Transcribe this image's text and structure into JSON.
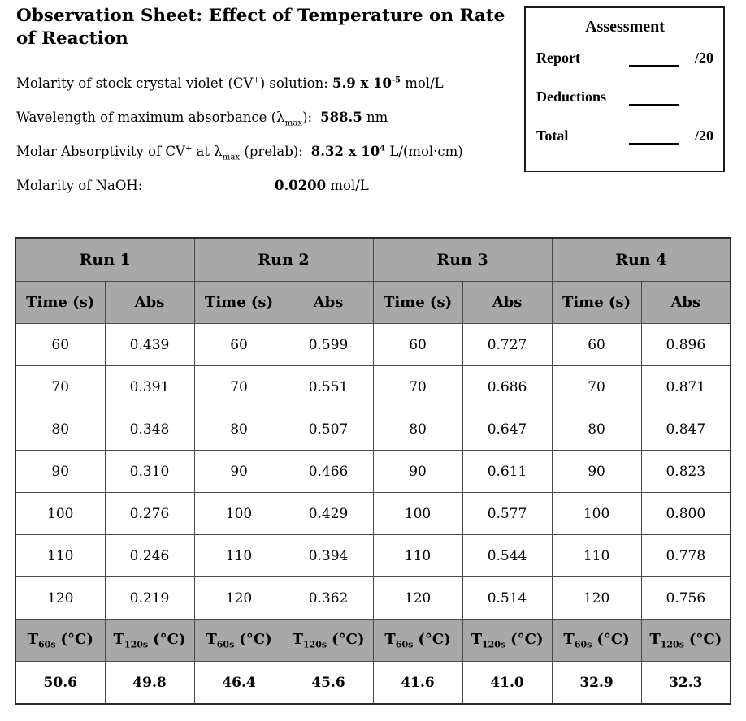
{
  "header": {
    "title": "Observation Sheet: Effect of Temperature on Rate of Reaction"
  },
  "assessment": {
    "title": "Assessment",
    "rows": [
      {
        "label": "Report",
        "suffix": "/20"
      },
      {
        "label": "Deductions",
        "suffix": ""
      },
      {
        "label": "Total",
        "suffix": "/20"
      }
    ]
  },
  "info": {
    "line1": {
      "pre": "Molarity of stock crystal violet (CV",
      "sup1": "+",
      "mid": ") solution: ",
      "value": "5.9 x 10",
      "value_sup": "-5",
      "unit": "  mol/L"
    },
    "line2": {
      "pre": "Wavelength of maximum absorbance (λ",
      "sub1": "max",
      "mid": "):",
      "value": "588.5",
      "unit": " nm"
    },
    "line3": {
      "pre": "Molar Absorptivity of CV",
      "sup1": "+",
      "mid": " at λ",
      "sub1": "max",
      "mid2": " (prelab):",
      "value": "8.32 x 10",
      "value_sup": "4",
      "unit": " L/(mol·cm)"
    },
    "line4": {
      "label": "Molarity of NaOH:",
      "value": "0.0200",
      "unit": " mol/L"
    }
  },
  "table": {
    "runs": [
      "Run 1",
      "Run 2",
      "Run 3",
      "Run 4"
    ],
    "columns": [
      "Time (s)",
      "Abs"
    ],
    "rows": [
      [
        "60",
        "0.439",
        "60",
        "0.599",
        "60",
        "0.727",
        "60",
        "0.896"
      ],
      [
        "70",
        "0.391",
        "70",
        "0.551",
        "70",
        "0.686",
        "70",
        "0.871"
      ],
      [
        "80",
        "0.348",
        "80",
        "0.507",
        "80",
        "0.647",
        "80",
        "0.847"
      ],
      [
        "90",
        "0.310",
        "90",
        "0.466",
        "90",
        "0.611",
        "90",
        "0.823"
      ],
      [
        "100",
        "0.276",
        "100",
        "0.429",
        "100",
        "0.577",
        "100",
        "0.800"
      ],
      [
        "110",
        "0.246",
        "110",
        "0.394",
        "110",
        "0.544",
        "110",
        "0.778"
      ],
      [
        "120",
        "0.219",
        "120",
        "0.362",
        "120",
        "0.514",
        "120",
        "0.756"
      ]
    ],
    "temp_header": {
      "pre": "T",
      "sub_60": "60s",
      "sub_120": "120s",
      "unit": "(°C)"
    },
    "temp_values": [
      "50.6",
      "49.8",
      "46.4",
      "45.6",
      "41.6",
      "41.0",
      "32.9",
      "32.3"
    ]
  },
  "colors": {
    "header_gray": "#a8a8a8",
    "border": "#2a2a2a"
  }
}
